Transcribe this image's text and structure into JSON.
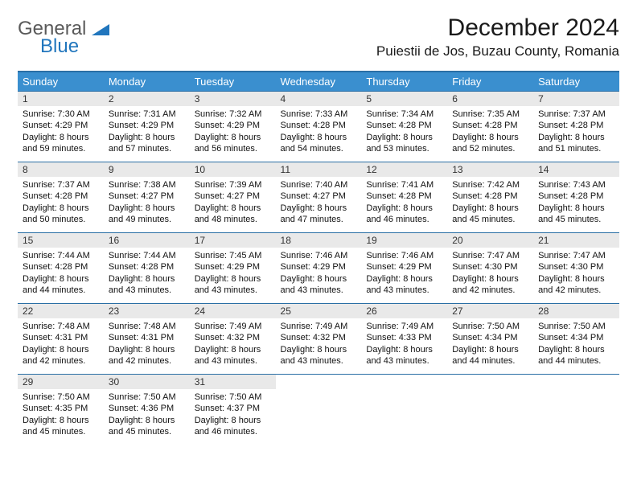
{
  "logo": {
    "word1": "General",
    "word2": "Blue"
  },
  "title": "December 2024",
  "subtitle": "Puiestii de Jos, Buzau County, Romania",
  "colors": {
    "header_bg": "#3a8fcf",
    "header_border": "#2a6fa5",
    "daynum_bg": "#e9e9e9",
    "logo_gray": "#5a5a5a",
    "logo_blue": "#2176bd"
  },
  "weekdays": [
    "Sunday",
    "Monday",
    "Tuesday",
    "Wednesday",
    "Thursday",
    "Friday",
    "Saturday"
  ],
  "weeks": [
    [
      {
        "n": "1",
        "sunrise": "7:30 AM",
        "sunset": "4:29 PM",
        "day_h": "8",
        "day_m": "59"
      },
      {
        "n": "2",
        "sunrise": "7:31 AM",
        "sunset": "4:29 PM",
        "day_h": "8",
        "day_m": "57"
      },
      {
        "n": "3",
        "sunrise": "7:32 AM",
        "sunset": "4:29 PM",
        "day_h": "8",
        "day_m": "56"
      },
      {
        "n": "4",
        "sunrise": "7:33 AM",
        "sunset": "4:28 PM",
        "day_h": "8",
        "day_m": "54"
      },
      {
        "n": "5",
        "sunrise": "7:34 AM",
        "sunset": "4:28 PM",
        "day_h": "8",
        "day_m": "53"
      },
      {
        "n": "6",
        "sunrise": "7:35 AM",
        "sunset": "4:28 PM",
        "day_h": "8",
        "day_m": "52"
      },
      {
        "n": "7",
        "sunrise": "7:37 AM",
        "sunset": "4:28 PM",
        "day_h": "8",
        "day_m": "51"
      }
    ],
    [
      {
        "n": "8",
        "sunrise": "7:37 AM",
        "sunset": "4:28 PM",
        "day_h": "8",
        "day_m": "50"
      },
      {
        "n": "9",
        "sunrise": "7:38 AM",
        "sunset": "4:27 PM",
        "day_h": "8",
        "day_m": "49"
      },
      {
        "n": "10",
        "sunrise": "7:39 AM",
        "sunset": "4:27 PM",
        "day_h": "8",
        "day_m": "48"
      },
      {
        "n": "11",
        "sunrise": "7:40 AM",
        "sunset": "4:27 PM",
        "day_h": "8",
        "day_m": "47"
      },
      {
        "n": "12",
        "sunrise": "7:41 AM",
        "sunset": "4:28 PM",
        "day_h": "8",
        "day_m": "46"
      },
      {
        "n": "13",
        "sunrise": "7:42 AM",
        "sunset": "4:28 PM",
        "day_h": "8",
        "day_m": "45"
      },
      {
        "n": "14",
        "sunrise": "7:43 AM",
        "sunset": "4:28 PM",
        "day_h": "8",
        "day_m": "45"
      }
    ],
    [
      {
        "n": "15",
        "sunrise": "7:44 AM",
        "sunset": "4:28 PM",
        "day_h": "8",
        "day_m": "44"
      },
      {
        "n": "16",
        "sunrise": "7:44 AM",
        "sunset": "4:28 PM",
        "day_h": "8",
        "day_m": "43"
      },
      {
        "n": "17",
        "sunrise": "7:45 AM",
        "sunset": "4:29 PM",
        "day_h": "8",
        "day_m": "43"
      },
      {
        "n": "18",
        "sunrise": "7:46 AM",
        "sunset": "4:29 PM",
        "day_h": "8",
        "day_m": "43"
      },
      {
        "n": "19",
        "sunrise": "7:46 AM",
        "sunset": "4:29 PM",
        "day_h": "8",
        "day_m": "43"
      },
      {
        "n": "20",
        "sunrise": "7:47 AM",
        "sunset": "4:30 PM",
        "day_h": "8",
        "day_m": "42"
      },
      {
        "n": "21",
        "sunrise": "7:47 AM",
        "sunset": "4:30 PM",
        "day_h": "8",
        "day_m": "42"
      }
    ],
    [
      {
        "n": "22",
        "sunrise": "7:48 AM",
        "sunset": "4:31 PM",
        "day_h": "8",
        "day_m": "42"
      },
      {
        "n": "23",
        "sunrise": "7:48 AM",
        "sunset": "4:31 PM",
        "day_h": "8",
        "day_m": "42"
      },
      {
        "n": "24",
        "sunrise": "7:49 AM",
        "sunset": "4:32 PM",
        "day_h": "8",
        "day_m": "43"
      },
      {
        "n": "25",
        "sunrise": "7:49 AM",
        "sunset": "4:32 PM",
        "day_h": "8",
        "day_m": "43"
      },
      {
        "n": "26",
        "sunrise": "7:49 AM",
        "sunset": "4:33 PM",
        "day_h": "8",
        "day_m": "43"
      },
      {
        "n": "27",
        "sunrise": "7:50 AM",
        "sunset": "4:34 PM",
        "day_h": "8",
        "day_m": "44"
      },
      {
        "n": "28",
        "sunrise": "7:50 AM",
        "sunset": "4:34 PM",
        "day_h": "8",
        "day_m": "44"
      }
    ],
    [
      {
        "n": "29",
        "sunrise": "7:50 AM",
        "sunset": "4:35 PM",
        "day_h": "8",
        "day_m": "45"
      },
      {
        "n": "30",
        "sunrise": "7:50 AM",
        "sunset": "4:36 PM",
        "day_h": "8",
        "day_m": "45"
      },
      {
        "n": "31",
        "sunrise": "7:50 AM",
        "sunset": "4:37 PM",
        "day_h": "8",
        "day_m": "46"
      },
      null,
      null,
      null,
      null
    ]
  ],
  "labels": {
    "sunrise": "Sunrise:",
    "sunset": "Sunset:",
    "daylight": "Daylight:",
    "hours": "hours",
    "and": "and",
    "minutes": "minutes."
  }
}
